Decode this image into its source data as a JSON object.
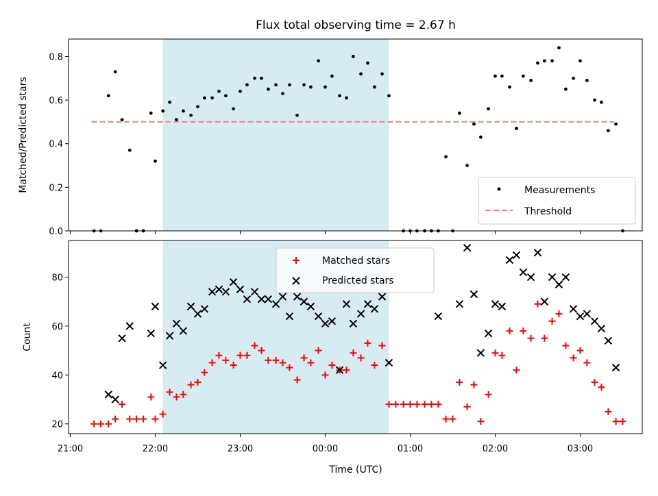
{
  "chart_data": {
    "title": "Flux total observing time = 2.67 h",
    "xlabel": "Time (UTC)",
    "x_tick_labels": [
      "21:00",
      "22:00",
      "23:00",
      "00:00",
      "01:00",
      "02:00",
      "03:00"
    ],
    "x_ticks_hours": [
      21,
      22,
      23,
      24,
      25,
      26,
      27
    ],
    "xlim_hours": [
      20.98,
      27.73
    ],
    "shaded_region_hours": [
      22.09,
      24.75
    ],
    "colors": {
      "shade": "#add8e6",
      "threshold": "#ff7f7f",
      "measurements": "#000000",
      "matched": "#ff0000",
      "predicted": "#000000"
    },
    "panels": [
      {
        "type": "scatter",
        "ylabel": "Matched/Predicted stars",
        "ylim": [
          0,
          0.88
        ],
        "y_ticks": [
          0.0,
          0.2,
          0.4,
          0.6,
          0.8
        ],
        "y_tick_labels": [
          "0.0",
          "0.2",
          "0.4",
          "0.6",
          "0.8"
        ],
        "legend_position": "lower-right",
        "threshold": {
          "name": "Threshold",
          "value": 0.5,
          "x_range_hours": [
            21.25,
            27.4
          ]
        },
        "series": [
          {
            "name": "Measurements",
            "marker": "dot",
            "points": [
              [
                21.28,
                0.0
              ],
              [
                21.36,
                0.0
              ],
              [
                21.45,
                0.62
              ],
              [
                21.53,
                0.73
              ],
              [
                21.61,
                0.51
              ],
              [
                21.7,
                0.37
              ],
              [
                21.78,
                0.0
              ],
              [
                21.86,
                0.0
              ],
              [
                21.95,
                0.54
              ],
              [
                22.0,
                0.32
              ],
              [
                22.09,
                0.55
              ],
              [
                22.17,
                0.59
              ],
              [
                22.25,
                0.51
              ],
              [
                22.33,
                0.55
              ],
              [
                22.42,
                0.53
              ],
              [
                22.5,
                0.57
              ],
              [
                22.58,
                0.61
              ],
              [
                22.67,
                0.61
              ],
              [
                22.75,
                0.64
              ],
              [
                22.83,
                0.62
              ],
              [
                22.92,
                0.56
              ],
              [
                23.0,
                0.64
              ],
              [
                23.08,
                0.67
              ],
              [
                23.17,
                0.7
              ],
              [
                23.25,
                0.7
              ],
              [
                23.33,
                0.65
              ],
              [
                23.42,
                0.67
              ],
              [
                23.5,
                0.63
              ],
              [
                23.58,
                0.67
              ],
              [
                23.67,
                0.53
              ],
              [
                23.75,
                0.67
              ],
              [
                23.83,
                0.66
              ],
              [
                23.92,
                0.78
              ],
              [
                24.0,
                0.66
              ],
              [
                24.08,
                0.71
              ],
              [
                24.17,
                0.62
              ],
              [
                24.25,
                0.61
              ],
              [
                24.33,
                0.8
              ],
              [
                24.42,
                0.72
              ],
              [
                24.5,
                0.77
              ],
              [
                24.58,
                0.66
              ],
              [
                24.67,
                0.72
              ],
              [
                24.75,
                0.62
              ],
              [
                24.92,
                0.0
              ],
              [
                25.0,
                0.0
              ],
              [
                25.08,
                0.0
              ],
              [
                25.17,
                0.0
              ],
              [
                25.25,
                0.0
              ],
              [
                25.33,
                0.0
              ],
              [
                25.42,
                0.34
              ],
              [
                25.5,
                0.0
              ],
              [
                25.58,
                0.54
              ],
              [
                25.67,
                0.3
              ],
              [
                25.75,
                0.49
              ],
              [
                25.83,
                0.43
              ],
              [
                25.92,
                0.56
              ],
              [
                26.0,
                0.71
              ],
              [
                26.08,
                0.71
              ],
              [
                26.17,
                0.66
              ],
              [
                26.25,
                0.47
              ],
              [
                26.33,
                0.71
              ],
              [
                26.42,
                0.69
              ],
              [
                26.5,
                0.77
              ],
              [
                26.58,
                0.78
              ],
              [
                26.67,
                0.78
              ],
              [
                26.75,
                0.84
              ],
              [
                26.83,
                0.65
              ],
              [
                26.92,
                0.7
              ],
              [
                27.0,
                0.78
              ],
              [
                27.08,
                0.69
              ],
              [
                27.17,
                0.6
              ],
              [
                27.25,
                0.59
              ],
              [
                27.33,
                0.46
              ],
              [
                27.42,
                0.49
              ],
              [
                27.5,
                0.0
              ]
            ]
          }
        ]
      },
      {
        "type": "scatter",
        "ylabel": "Count",
        "ylim": [
          16,
          95
        ],
        "y_ticks": [
          20,
          40,
          60,
          80
        ],
        "y_tick_labels": [
          "20",
          "40",
          "60",
          "80"
        ],
        "legend_position": "upper-center",
        "series": [
          {
            "name": "Matched stars",
            "marker": "plus",
            "points": [
              [
                21.28,
                20
              ],
              [
                21.36,
                20
              ],
              [
                21.45,
                20
              ],
              [
                21.53,
                22
              ],
              [
                21.61,
                28
              ],
              [
                21.7,
                22
              ],
              [
                21.78,
                22
              ],
              [
                21.86,
                22
              ],
              [
                21.95,
                31
              ],
              [
                22.0,
                22
              ],
              [
                22.09,
                24
              ],
              [
                22.17,
                33
              ],
              [
                22.25,
                31
              ],
              [
                22.33,
                32
              ],
              [
                22.42,
                36
              ],
              [
                22.5,
                37
              ],
              [
                22.58,
                41
              ],
              [
                22.67,
                45
              ],
              [
                22.75,
                48
              ],
              [
                22.83,
                46
              ],
              [
                22.92,
                44
              ],
              [
                23.0,
                48
              ],
              [
                23.08,
                48
              ],
              [
                23.17,
                52
              ],
              [
                23.25,
                50
              ],
              [
                23.33,
                46
              ],
              [
                23.42,
                46
              ],
              [
                23.5,
                45
              ],
              [
                23.58,
                43
              ],
              [
                23.67,
                38
              ],
              [
                23.75,
                47
              ],
              [
                23.83,
                45
              ],
              [
                23.92,
                50
              ],
              [
                24.0,
                40
              ],
              [
                24.08,
                44
              ],
              [
                24.17,
                42
              ],
              [
                24.25,
                42
              ],
              [
                24.33,
                49
              ],
              [
                24.42,
                47
              ],
              [
                24.5,
                53
              ],
              [
                24.58,
                44
              ],
              [
                24.67,
                52
              ],
              [
                24.75,
                28
              ],
              [
                24.83,
                28
              ],
              [
                24.92,
                28
              ],
              [
                25.0,
                28
              ],
              [
                25.08,
                28
              ],
              [
                25.17,
                28
              ],
              [
                25.25,
                28
              ],
              [
                25.33,
                28
              ],
              [
                25.42,
                22
              ],
              [
                25.5,
                22
              ],
              [
                25.58,
                37
              ],
              [
                25.67,
                27
              ],
              [
                25.75,
                36
              ],
              [
                25.83,
                21
              ],
              [
                25.92,
                32
              ],
              [
                26.0,
                49
              ],
              [
                26.08,
                48
              ],
              [
                26.17,
                58
              ],
              [
                26.25,
                42
              ],
              [
                26.33,
                58
              ],
              [
                26.42,
                55
              ],
              [
                26.5,
                69
              ],
              [
                26.58,
                55
              ],
              [
                26.67,
                62
              ],
              [
                26.75,
                65
              ],
              [
                26.83,
                52
              ],
              [
                26.92,
                47
              ],
              [
                27.0,
                50
              ],
              [
                27.08,
                45
              ],
              [
                27.17,
                37
              ],
              [
                27.25,
                35
              ],
              [
                27.33,
                25
              ],
              [
                27.42,
                21
              ],
              [
                27.5,
                21
              ]
            ]
          },
          {
            "name": "Predicted stars",
            "marker": "x",
            "points": [
              [
                21.45,
                32
              ],
              [
                21.53,
                30
              ],
              [
                21.61,
                55
              ],
              [
                21.7,
                60
              ],
              [
                21.95,
                57
              ],
              [
                22.0,
                68
              ],
              [
                22.09,
                44
              ],
              [
                22.17,
                56
              ],
              [
                22.25,
                61
              ],
              [
                22.33,
                58
              ],
              [
                22.42,
                68
              ],
              [
                22.5,
                65
              ],
              [
                22.58,
                67
              ],
              [
                22.67,
                74
              ],
              [
                22.75,
                75
              ],
              [
                22.83,
                74
              ],
              [
                22.92,
                78
              ],
              [
                23.0,
                75
              ],
              [
                23.08,
                71
              ],
              [
                23.17,
                74
              ],
              [
                23.25,
                71
              ],
              [
                23.33,
                71
              ],
              [
                23.42,
                69
              ],
              [
                23.5,
                72
              ],
              [
                23.58,
                64
              ],
              [
                23.67,
                72
              ],
              [
                23.75,
                70
              ],
              [
                23.83,
                68
              ],
              [
                23.92,
                64
              ],
              [
                24.0,
                61
              ],
              [
                24.08,
                62
              ],
              [
                24.17,
                42
              ],
              [
                24.25,
                69
              ],
              [
                24.33,
                61
              ],
              [
                24.42,
                65
              ],
              [
                24.5,
                69
              ],
              [
                24.58,
                67
              ],
              [
                24.67,
                72
              ],
              [
                24.75,
                45
              ],
              [
                25.33,
                64
              ],
              [
                25.58,
                69
              ],
              [
                25.67,
                92
              ],
              [
                25.75,
                73
              ],
              [
                25.83,
                49
              ],
              [
                25.92,
                57
              ],
              [
                26.0,
                69
              ],
              [
                26.08,
                68
              ],
              [
                26.17,
                87
              ],
              [
                26.25,
                89
              ],
              [
                26.33,
                82
              ],
              [
                26.42,
                80
              ],
              [
                26.5,
                90
              ],
              [
                26.58,
                70
              ],
              [
                26.67,
                80
              ],
              [
                26.75,
                77
              ],
              [
                26.83,
                80
              ],
              [
                26.92,
                67
              ],
              [
                27.0,
                64
              ],
              [
                27.08,
                65
              ],
              [
                27.17,
                62
              ],
              [
                27.25,
                59
              ],
              [
                27.33,
                54
              ],
              [
                27.42,
                43
              ]
            ]
          }
        ]
      }
    ]
  }
}
